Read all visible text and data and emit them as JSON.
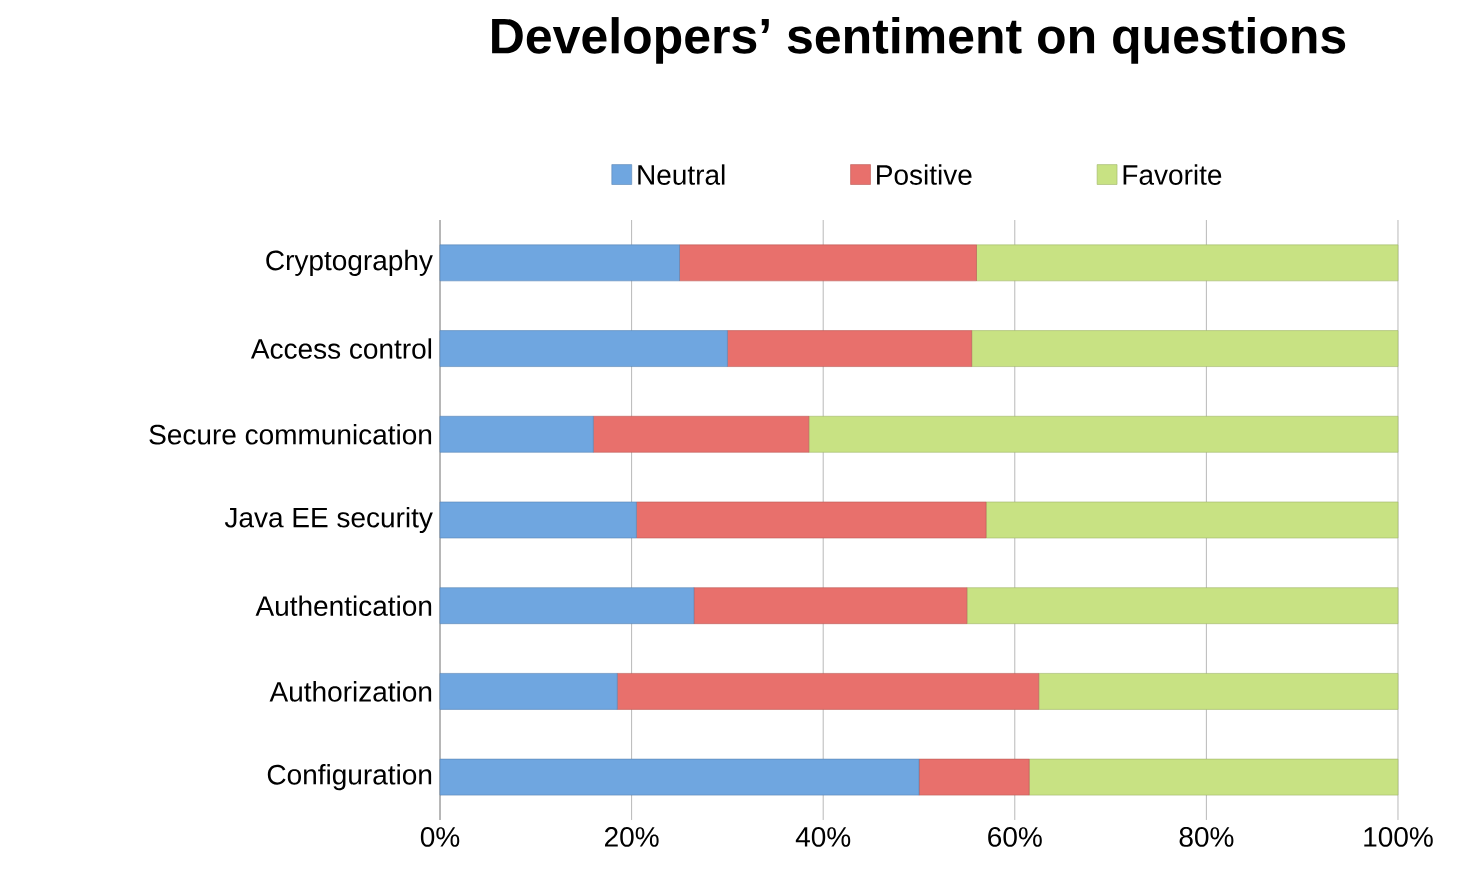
{
  "chart_data": {
    "type": "bar",
    "orientation": "horizontal",
    "stacked": true,
    "title": "Developers’ sentiment on questions",
    "categories": [
      "Cryptography",
      "Access control",
      "Secure communication",
      "Java EE security",
      "Authentication",
      "Authorization",
      "Configuration"
    ],
    "series": [
      {
        "name": "Neutral",
        "color": "#6fa6e0",
        "values": [
          25,
          30,
          16,
          20.5,
          26.5,
          18.5,
          50
        ]
      },
      {
        "name": "Positive",
        "color": "#e8706c",
        "values": [
          31,
          25.5,
          22.5,
          36.5,
          28.5,
          44,
          11.5
        ]
      },
      {
        "name": "Favorite",
        "color": "#c8e283",
        "values": [
          44,
          44.5,
          61.5,
          43,
          45,
          37.5,
          38.5
        ]
      }
    ],
    "xlim": [
      0,
      100
    ],
    "xticks": [
      {
        "value": 0,
        "label": "0%"
      },
      {
        "value": 20,
        "label": "20%"
      },
      {
        "value": 40,
        "label": "40%"
      },
      {
        "value": 60,
        "label": "60%"
      },
      {
        "value": 80,
        "label": "80%"
      },
      {
        "value": 100,
        "label": "100%"
      }
    ],
    "grid": "x",
    "legend": "top"
  }
}
